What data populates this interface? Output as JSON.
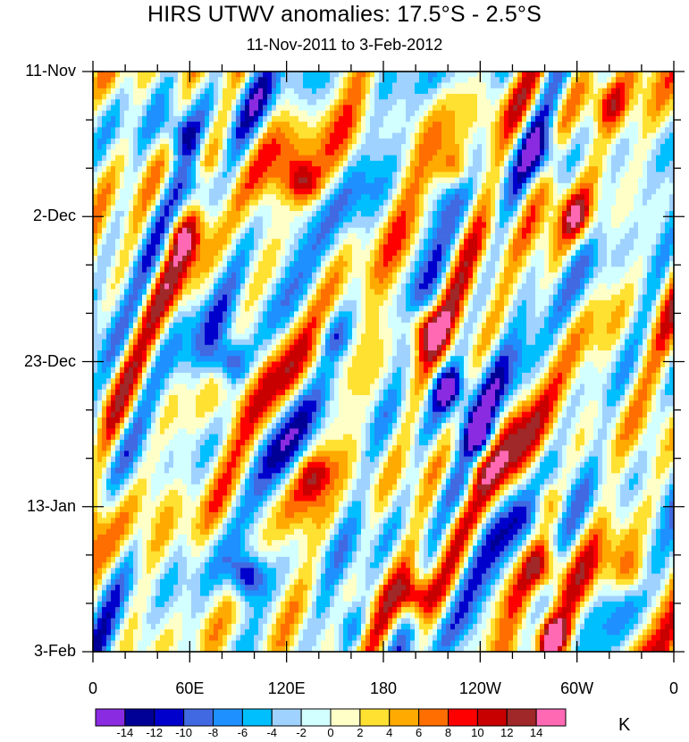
{
  "chart_data": {
    "type": "heatmap",
    "title": "HIRS UTWV anomalies: 17.5°S - 2.5°S",
    "subtitle": "11-Nov-2011 to 3-Feb-2012",
    "x_tick_labels": [
      "0",
      "60E",
      "120E",
      "180",
      "120W",
      "60W",
      "0"
    ],
    "x_tick_values_deg": [
      0,
      60,
      120,
      180,
      240,
      300,
      360
    ],
    "x_range_deg": [
      0,
      360
    ],
    "y_tick_labels": [
      "11-Nov",
      "2-Dec",
      "23-Dec",
      "13-Jan",
      "3-Feb"
    ],
    "y_tick_values_day": [
      0,
      21,
      42,
      63,
      84
    ],
    "y_range_day": [
      0,
      84
    ],
    "colorbar": {
      "units": "K",
      "levels": [
        "-14",
        "-12",
        "-10",
        "-8",
        "-6",
        "-4",
        "-2",
        "0",
        "2",
        "4",
        "6",
        "8",
        "10",
        "12",
        "14"
      ],
      "level_values": [
        -14,
        -12,
        -10,
        -8,
        -6,
        -4,
        -2,
        0,
        2,
        4,
        6,
        8,
        10,
        12,
        14
      ],
      "colors": [
        "#8a2be2",
        "#000096",
        "#0000cd",
        "#4169e1",
        "#1e90ff",
        "#00bfff",
        "#a0d2ff",
        "#d2ffff",
        "#ffffc8",
        "#ffe132",
        "#ffaa00",
        "#ff6e00",
        "#ff0000",
        "#c80000",
        "#a02828",
        "#ff69b4"
      ]
    },
    "features": [
      {
        "lon": 95,
        "day": 73,
        "value": -13
      },
      {
        "lon": 85,
        "day": 42,
        "value": -12
      },
      {
        "lon": 220,
        "day": 46,
        "value": -11
      },
      {
        "lon": 240,
        "day": 53,
        "value": -10
      },
      {
        "lon": 55,
        "day": 9,
        "value": -9
      },
      {
        "lon": 65,
        "day": 17,
        "value": -8
      },
      {
        "lon": 145,
        "day": 60,
        "value": -7
      },
      {
        "lon": 150,
        "day": 38,
        "value": -7
      },
      {
        "lon": 280,
        "day": 12,
        "value": -8
      },
      {
        "lon": 230,
        "day": 61,
        "value": -6
      },
      {
        "lon": 160,
        "day": 80,
        "value": -6
      },
      {
        "lon": 205,
        "day": 37,
        "value": 11
      },
      {
        "lon": 130,
        "day": 16,
        "value": 10
      },
      {
        "lon": 140,
        "day": 59,
        "value": 10
      },
      {
        "lon": 200,
        "day": 76,
        "value": 11
      },
      {
        "lon": 285,
        "day": 82,
        "value": 14
      },
      {
        "lon": 280,
        "day": 72,
        "value": 9
      },
      {
        "lon": 225,
        "day": 14,
        "value": 9
      },
      {
        "lon": 300,
        "day": 21,
        "value": 8
      },
      {
        "lon": 55,
        "day": 24,
        "value": 8
      },
      {
        "lon": 335,
        "day": 73,
        "value": 7
      },
      {
        "lon": 280,
        "day": 62,
        "value": 8
      },
      {
        "lon": 320,
        "day": 5,
        "value": 6
      }
    ]
  }
}
